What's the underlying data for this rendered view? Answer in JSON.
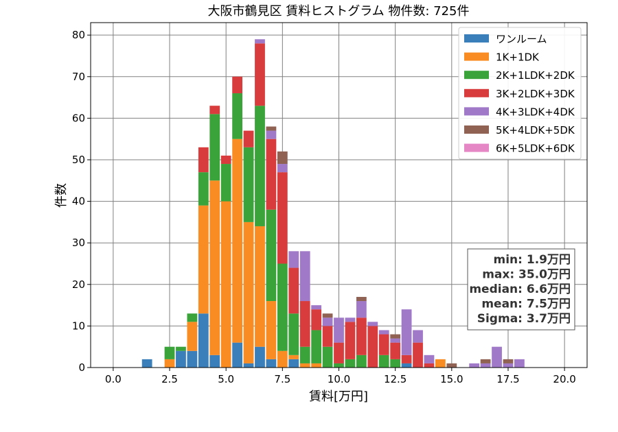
{
  "chart_data": {
    "type": "bar",
    "stacked": true,
    "title": "大阪市鶴見区 賃料ヒストグラム  物件数: 725件",
    "xlabel": "賃料[万円]",
    "ylabel": "件数",
    "xlim": [
      -1.0,
      21.0
    ],
    "ylim": [
      0,
      83
    ],
    "xticks": [
      0.0,
      2.5,
      5.0,
      7.5,
      10.0,
      12.5,
      15.0,
      17.5,
      20.0
    ],
    "xtick_labels": [
      "0.0",
      "2.5",
      "5.0",
      "7.5",
      "10.0",
      "12.5",
      "15.0",
      "17.5",
      "20.0"
    ],
    "yticks": [
      0,
      10,
      20,
      30,
      40,
      50,
      60,
      70,
      80
    ],
    "ytick_labels": [
      "0",
      "10",
      "20",
      "30",
      "40",
      "50",
      "60",
      "70",
      "80"
    ],
    "grid": true,
    "legend_position": "top-right",
    "bin_width": 0.5,
    "x": [
      1.5,
      2.5,
      3.0,
      3.5,
      4.0,
      4.5,
      5.0,
      5.5,
      6.0,
      6.5,
      7.0,
      7.5,
      8.0,
      8.5,
      9.0,
      9.5,
      10.0,
      10.5,
      11.0,
      11.5,
      12.0,
      12.5,
      13.0,
      13.5,
      14.0,
      14.5,
      15.0,
      16.0,
      16.5,
      17.0,
      17.5,
      18.0
    ],
    "series": [
      {
        "name": "ワンルーム",
        "color": "#3a7fb9",
        "values": [
          2,
          0,
          4,
          4,
          13,
          3,
          0,
          6,
          1,
          5,
          2,
          0,
          2,
          0,
          0,
          0,
          0,
          0,
          0,
          0,
          0,
          0,
          1,
          0,
          0,
          0,
          0,
          0,
          0,
          0,
          0,
          0
        ]
      },
      {
        "name": "1K+1DK",
        "color": "#f98c23",
        "values": [
          0,
          2,
          0,
          7,
          26,
          42,
          40,
          49,
          34,
          29,
          14,
          4,
          1,
          1,
          1,
          0,
          0,
          0,
          0,
          0,
          0,
          0,
          0,
          0,
          0,
          2,
          0,
          0,
          0,
          0,
          0,
          0
        ]
      },
      {
        "name": "2K+1LDK+2DK",
        "color": "#3aa33a",
        "values": [
          0,
          3,
          1,
          2,
          8,
          16,
          9,
          11,
          18,
          29,
          22,
          21,
          10,
          4,
          8,
          5,
          1,
          2,
          3,
          0,
          3,
          2,
          0,
          0,
          0,
          0,
          0,
          0,
          0,
          0,
          0,
          0
        ]
      },
      {
        "name": "3K+2LDK+3DK",
        "color": "#d83c3c",
        "values": [
          0,
          0,
          0,
          0,
          6,
          2,
          2,
          4,
          4,
          15,
          17,
          22,
          11,
          11,
          5,
          5,
          5,
          9,
          9,
          10,
          5,
          4,
          2,
          6,
          1,
          0,
          0,
          0,
          0,
          0,
          0,
          0
        ]
      },
      {
        "name": "4K+3LDK+4DK",
        "color": "#a07ac8",
        "values": [
          0,
          0,
          0,
          0,
          0,
          0,
          0,
          0,
          0,
          1,
          2,
          2,
          4,
          12,
          1,
          2,
          6,
          1,
          4,
          1,
          1,
          1,
          11,
          3,
          2,
          0,
          0,
          1,
          1,
          5,
          1,
          2
        ]
      },
      {
        "name": "5K+4LDK+5DK",
        "color": "#8f6254",
        "values": [
          0,
          0,
          0,
          0,
          0,
          0,
          0,
          0,
          0,
          0,
          1,
          3,
          0,
          0,
          0,
          1,
          0,
          0,
          1,
          0,
          0,
          1,
          0,
          0,
          0,
          0,
          1,
          0,
          1,
          0,
          1,
          0
        ]
      },
      {
        "name": "6K+5LDK+6DK",
        "color": "#e587c5",
        "values": [
          0,
          0,
          0,
          0,
          0,
          0,
          0,
          0,
          0,
          0,
          0,
          0,
          0,
          0,
          0,
          0,
          0,
          0,
          0,
          0,
          0,
          0,
          0,
          0,
          0,
          0,
          0,
          0,
          0,
          0,
          0,
          0
        ]
      }
    ],
    "stats_box": [
      "min: 1.9万円",
      "max: 35.0万円",
      "median: 6.6万円",
      "mean: 7.5万円",
      "Sigma: 3.7万円"
    ]
  }
}
